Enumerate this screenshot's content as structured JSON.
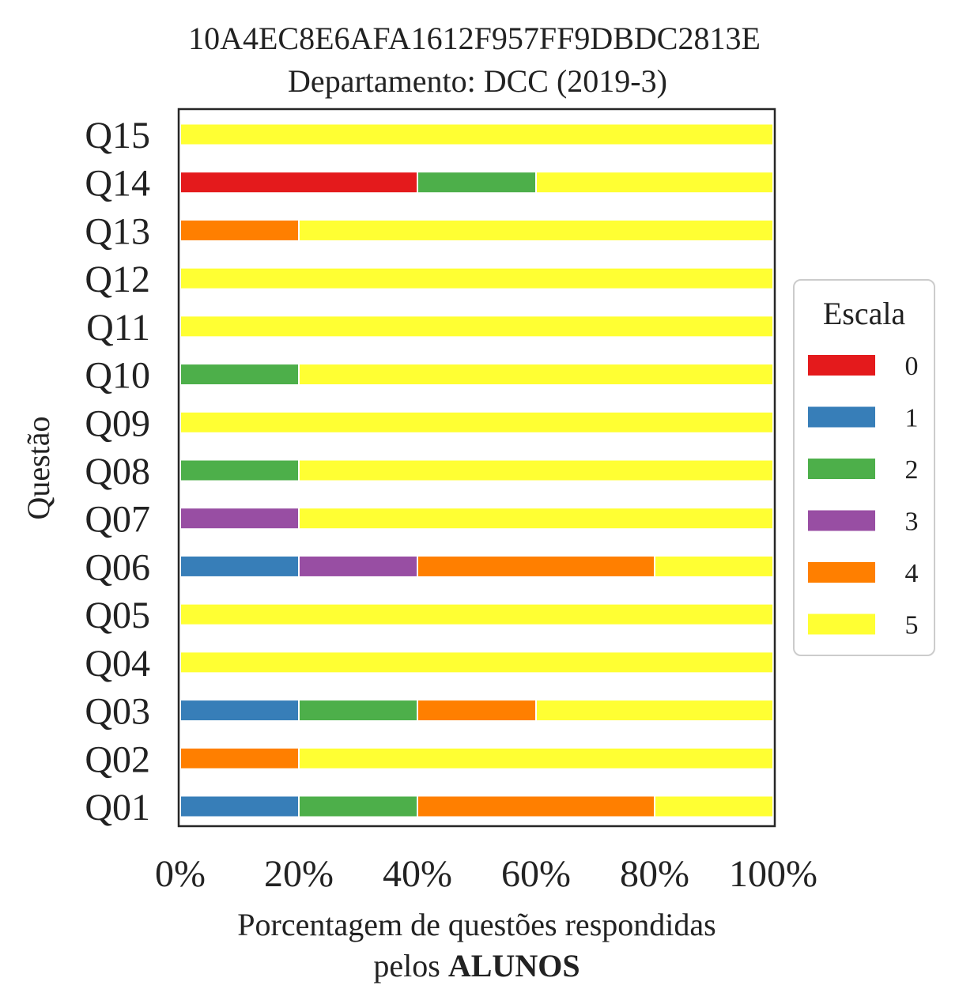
{
  "chart_data": {
    "type": "bar",
    "orientation": "horizontal",
    "stacked": true,
    "title": "10A4EC8E6AFA1612F957FF9DBDC2813E",
    "subtitle": "Departamento: DCC (2019-3)",
    "xlabel_line1": "Porcentagem de questões respondidas",
    "xlabel_line2_prefix": "pelos ",
    "xlabel_line2_bold": "ALUNOS",
    "ylabel": "Questão",
    "xlim": [
      0,
      100
    ],
    "xticks": [
      "0%",
      "20%",
      "40%",
      "60%",
      "80%",
      "100%"
    ],
    "xtick_values": [
      0,
      20,
      40,
      60,
      80,
      100
    ],
    "categories": [
      "Q01",
      "Q02",
      "Q03",
      "Q04",
      "Q05",
      "Q06",
      "Q07",
      "Q08",
      "Q09",
      "Q10",
      "Q11",
      "Q12",
      "Q13",
      "Q14",
      "Q15"
    ],
    "legend": {
      "title": "Escala",
      "position": "center-right"
    },
    "series": [
      {
        "name": "0",
        "color": "#e41a1c",
        "values": [
          0,
          0,
          0,
          0,
          0,
          0,
          0,
          0,
          0,
          0,
          0,
          0,
          0,
          40,
          0
        ]
      },
      {
        "name": "1",
        "color": "#377eb8",
        "values": [
          20,
          0,
          20,
          0,
          0,
          20,
          0,
          0,
          0,
          0,
          0,
          0,
          0,
          0,
          0
        ]
      },
      {
        "name": "2",
        "color": "#4daf4a",
        "values": [
          20,
          0,
          20,
          0,
          0,
          0,
          0,
          20,
          0,
          20,
          0,
          0,
          0,
          20,
          0
        ]
      },
      {
        "name": "3",
        "color": "#984ea3",
        "values": [
          0,
          0,
          0,
          0,
          0,
          20,
          20,
          0,
          0,
          0,
          0,
          0,
          0,
          0,
          0
        ]
      },
      {
        "name": "4",
        "color": "#ff7f00",
        "values": [
          40,
          20,
          20,
          0,
          0,
          40,
          0,
          0,
          0,
          0,
          0,
          0,
          20,
          0,
          0
        ]
      },
      {
        "name": "5",
        "color": "#ffff33",
        "values": [
          20,
          80,
          40,
          100,
          100,
          20,
          80,
          80,
          100,
          80,
          100,
          100,
          80,
          40,
          100
        ]
      }
    ]
  }
}
